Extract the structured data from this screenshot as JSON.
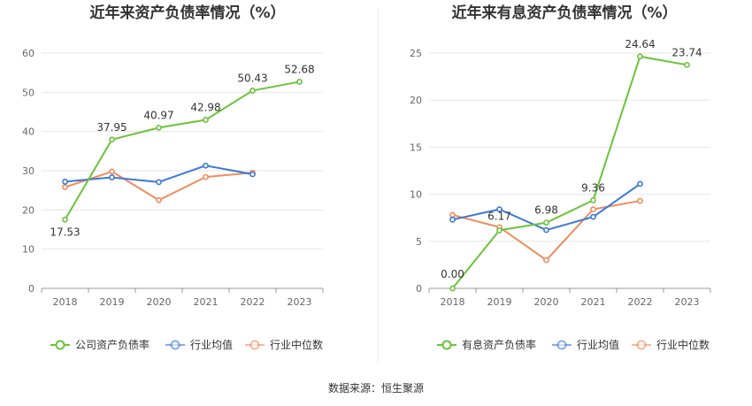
{
  "source_text": "数据来源：恒生聚源",
  "chart_data": [
    {
      "type": "line",
      "title": "近年来资产负债率情况（%）",
      "categories": [
        "2018",
        "2019",
        "2020",
        "2021",
        "2022",
        "2023"
      ],
      "ylim": [
        0,
        60
      ],
      "yticks": [
        0,
        10,
        20,
        30,
        40,
        50,
        60
      ],
      "grid": true,
      "legend_position": "bottom",
      "series": [
        {
          "name": "公司资产负债率",
          "color": "#6ac33a",
          "values": [
            17.53,
            37.95,
            40.97,
            42.98,
            50.43,
            52.68
          ],
          "labels": [
            "17.53",
            "37.95",
            "40.97",
            "42.98",
            "50.43",
            "52.68"
          ]
        },
        {
          "name": "行业均值",
          "color": "#3c78d8",
          "values": [
            27.2,
            28.3,
            27.1,
            31.3,
            29.1,
            null
          ]
        },
        {
          "name": "行业中位数",
          "color": "#f08c5a",
          "values": [
            25.8,
            29.8,
            22.5,
            28.4,
            29.5,
            null
          ]
        }
      ]
    },
    {
      "type": "line",
      "title": "近年来有息资产负债率情况（%）",
      "categories": [
        "2018",
        "2019",
        "2020",
        "2021",
        "2022",
        "2023"
      ],
      "ylim": [
        0,
        25
      ],
      "yticks": [
        0,
        5,
        10,
        15,
        20,
        25
      ],
      "grid": true,
      "legend_position": "bottom",
      "series": [
        {
          "name": "有息资产负债率",
          "color": "#6ac33a",
          "values": [
            0.0,
            6.17,
            6.98,
            9.36,
            24.64,
            23.74
          ],
          "labels": [
            "0.00",
            "6.17",
            "6.98",
            "9.36",
            "24.64",
            "23.74"
          ]
        },
        {
          "name": "行业均值",
          "color": "#3c78d8",
          "values": [
            7.3,
            8.4,
            6.2,
            7.6,
            11.1,
            null
          ]
        },
        {
          "name": "行业中位数",
          "color": "#f08c5a",
          "values": [
            7.8,
            6.5,
            3.0,
            8.4,
            9.3,
            null
          ]
        }
      ]
    }
  ]
}
